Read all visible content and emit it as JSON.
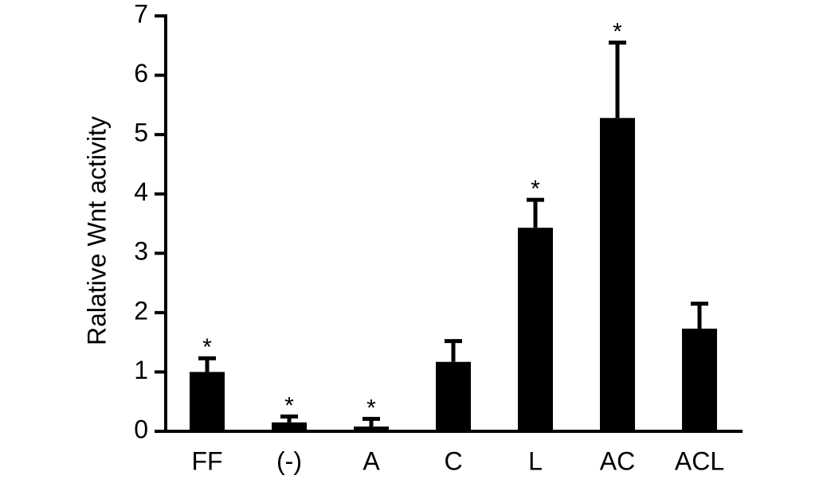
{
  "chart_data": {
    "type": "bar",
    "y_label": "Ralative Wnt activity",
    "categories": [
      "FF",
      "(-)",
      "A",
      "C",
      "L",
      "AC",
      "ACL"
    ],
    "series": [
      {
        "color": "#000000",
        "values": [
          1.0,
          0.15,
          0.08,
          1.17,
          3.43,
          5.28,
          1.73
        ],
        "errors": [
          0.23,
          0.1,
          0.13,
          0.35,
          0.47,
          1.27,
          0.42
        ]
      }
    ],
    "annotations": [
      "*",
      "*",
      "*",
      null,
      "*",
      "*",
      null
    ],
    "ylim": [
      0,
      7
    ],
    "yticks": [
      0,
      1,
      2,
      3,
      4,
      5,
      6,
      7
    ]
  }
}
